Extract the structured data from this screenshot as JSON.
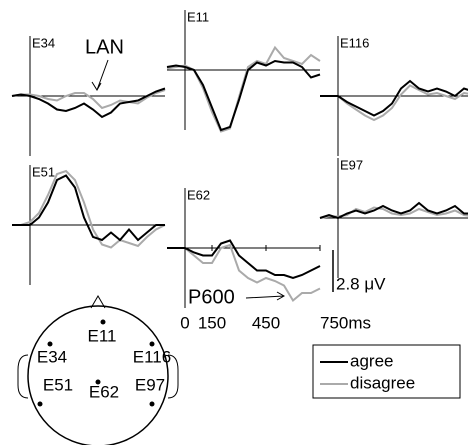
{
  "chart_data": [
    {
      "type": "line",
      "title": "E34",
      "annotation": "LAN",
      "xlim": [
        -100,
        750
      ],
      "ylim": [
        -4,
        4
      ],
      "x": [
        -100,
        -50,
        0,
        50,
        100,
        150,
        200,
        250,
        300,
        350,
        400,
        450,
        500,
        550,
        600,
        650,
        700,
        750
      ],
      "series": [
        {
          "name": "agree",
          "color": "#000000",
          "values": [
            0,
            0.1,
            0,
            -0.2,
            -0.5,
            -0.9,
            -1,
            -0.8,
            -0.5,
            -0.9,
            -1.4,
            -1.1,
            -0.5,
            -0.4,
            -0.3,
            0,
            0.3,
            0.5
          ]
        },
        {
          "name": "disagree",
          "color": "#aaaaaa",
          "values": [
            0,
            0.1,
            0.1,
            0,
            -0.2,
            -0.3,
            0,
            0.2,
            0.2,
            -0.2,
            -0.8,
            -0.6,
            -0.3,
            -0.4,
            -0.5,
            -0.1,
            0.2,
            0.4
          ]
        }
      ]
    },
    {
      "type": "line",
      "title": "E11",
      "xlim": [
        -100,
        750
      ],
      "ylim": [
        -4,
        4
      ],
      "x": [
        -100,
        -50,
        0,
        50,
        100,
        150,
        200,
        250,
        300,
        350,
        400,
        450,
        500,
        550,
        600,
        650,
        700,
        750
      ],
      "series": [
        {
          "name": "agree",
          "color": "#000000",
          "values": [
            0.2,
            0.3,
            0.2,
            0,
            -1,
            -2.5,
            -4,
            -3.8,
            -2,
            0,
            0.5,
            0.3,
            0.6,
            0.5,
            0.5,
            0.2,
            -0.5,
            -0.3
          ]
        },
        {
          "name": "disagree",
          "color": "#aaaaaa",
          "values": [
            0.1,
            0.2,
            0.3,
            0,
            -1.2,
            -2.8,
            -4.1,
            -3.9,
            -1.8,
            0.2,
            0.6,
            0.4,
            1.5,
            0.8,
            0.6,
            0.4,
            1,
            0.6
          ]
        }
      ]
    },
    {
      "type": "line",
      "title": "E116",
      "xlim": [
        -100,
        750
      ],
      "ylim": [
        -4,
        4
      ],
      "x": [
        -100,
        -50,
        0,
        50,
        100,
        150,
        200,
        250,
        300,
        350,
        400,
        450,
        500,
        550,
        600,
        650,
        700,
        750
      ],
      "series": [
        {
          "name": "agree",
          "color": "#000000",
          "values": [
            0,
            0,
            0,
            -0.4,
            -0.7,
            -1,
            -1.3,
            -1,
            -0.5,
            0.5,
            1,
            0.5,
            0.3,
            0.5,
            0.3,
            0,
            0.5,
            0.3
          ]
        },
        {
          "name": "disagree",
          "color": "#aaaaaa",
          "values": [
            0,
            0,
            0,
            -0.5,
            -0.9,
            -1.3,
            -1.6,
            -1.3,
            -0.8,
            0.1,
            0.7,
            0.4,
            0.1,
            0.2,
            0,
            -0.2,
            0.2,
            0.1
          ]
        }
      ]
    },
    {
      "type": "line",
      "title": "E51",
      "xlim": [
        -100,
        750
      ],
      "ylim": [
        -4,
        4
      ],
      "x": [
        -100,
        -50,
        0,
        50,
        100,
        150,
        200,
        250,
        300,
        350,
        400,
        450,
        500,
        550,
        600,
        650,
        700,
        750
      ],
      "series": [
        {
          "name": "agree",
          "color": "#000000",
          "values": [
            0,
            0,
            0,
            0.5,
            1.5,
            3,
            3.3,
            2.5,
            0.5,
            -0.8,
            -1,
            -0.5,
            -1,
            -0.3,
            -1,
            -0.5,
            0,
            0
          ]
        },
        {
          "name": "disagree",
          "color": "#aaaaaa",
          "values": [
            0,
            0,
            0.2,
            0.8,
            2,
            3.4,
            3.6,
            3,
            1.5,
            -0.3,
            -1.3,
            -1.5,
            -1,
            -1.2,
            -1.4,
            -0.8,
            -0.3,
            0
          ]
        }
      ]
    },
    {
      "type": "line",
      "title": "E62",
      "annotation": "P600",
      "xlim": [
        -100,
        750
      ],
      "ylim": [
        -4,
        4
      ],
      "xticks": [
        0,
        150,
        450,
        {
          "value": 750,
          "label": "750ms"
        }
      ],
      "scale_bar": {
        "value": 2.8,
        "label": "2.8 μV"
      },
      "x": [
        -100,
        -50,
        0,
        50,
        100,
        150,
        200,
        250,
        300,
        350,
        400,
        450,
        500,
        550,
        600,
        650,
        700,
        750
      ],
      "series": [
        {
          "name": "agree",
          "color": "#000000",
          "values": [
            0,
            0,
            0,
            -0.3,
            -0.5,
            -0.5,
            0.3,
            0.5,
            -0.5,
            -1,
            -1.5,
            -1.5,
            -1.8,
            -1.8,
            -2,
            -1.8,
            -1.5,
            -1.2
          ]
        },
        {
          "name": "disagree",
          "color": "#aaaaaa",
          "values": [
            0,
            0,
            0,
            -0.5,
            -1,
            -1,
            0,
            0.2,
            -1.5,
            -2,
            -2.3,
            -2,
            -2.2,
            -2.5,
            -3.5,
            -3,
            -3,
            -2.7
          ]
        }
      ]
    },
    {
      "type": "line",
      "title": "E97",
      "xlim": [
        -100,
        750
      ],
      "ylim": [
        -4,
        4
      ],
      "x": [
        -100,
        -50,
        0,
        50,
        100,
        150,
        200,
        250,
        300,
        350,
        400,
        450,
        500,
        550,
        600,
        650,
        700,
        750
      ],
      "series": [
        {
          "name": "agree",
          "color": "#000000",
          "values": [
            0,
            0.2,
            0,
            0.3,
            0.5,
            0.3,
            0.5,
            0.8,
            0.5,
            0.3,
            0.5,
            1,
            0.5,
            0.3,
            0.5,
            0.8,
            0.3,
            0.3
          ]
        },
        {
          "name": "disagree",
          "color": "#aaaaaa",
          "values": [
            0,
            0.1,
            0.1,
            0.2,
            0.6,
            0.4,
            0.7,
            0.6,
            0.3,
            0.2,
            0.3,
            0.6,
            0.4,
            0.2,
            0.3,
            0.5,
            0.2,
            0.1
          ]
        }
      ]
    }
  ]
}
